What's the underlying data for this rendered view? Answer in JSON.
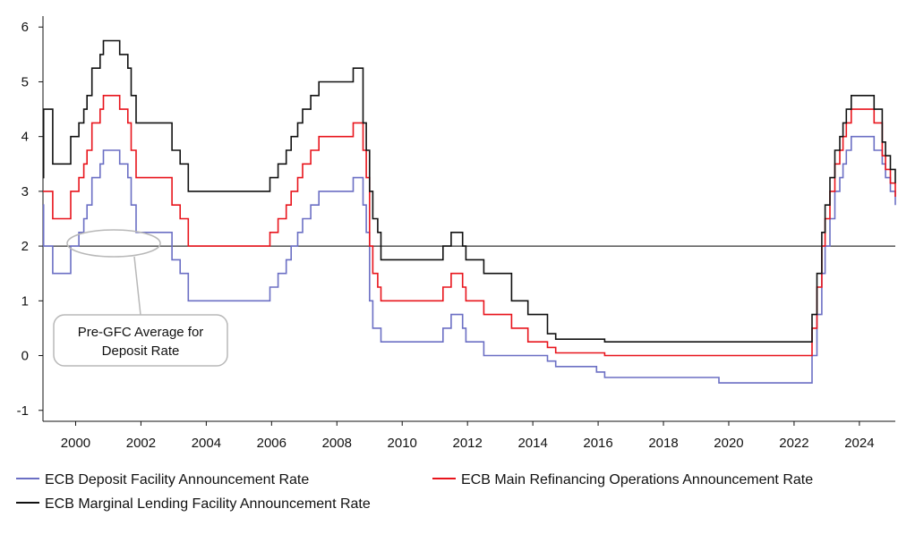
{
  "chart_data": {
    "type": "line",
    "title": "",
    "xlabel": "",
    "ylabel": "",
    "xlim": [
      1999.0,
      2025.1
    ],
    "ylim": [
      -1.2,
      6.2
    ],
    "x_ticks": [
      2000,
      2002,
      2004,
      2006,
      2008,
      2010,
      2012,
      2014,
      2016,
      2018,
      2020,
      2022,
      2024
    ],
    "x_tick_labels": [
      "2000",
      "2002",
      "2004",
      "2006",
      "2008",
      "2010",
      "2012",
      "2014",
      "2016",
      "2018",
      "2020",
      "2022",
      "2024"
    ],
    "y_ticks": [
      -1,
      0,
      1,
      2,
      3,
      4,
      5,
      6
    ],
    "y_tick_labels": [
      "-1",
      "0",
      "1",
      "2",
      "3",
      "4",
      "5",
      "6"
    ],
    "grid": false,
    "legend_position": "bottom",
    "reference_line": {
      "y": 2.0,
      "color": "#000000"
    },
    "annotation": {
      "lines": [
        "Pre-GFC Average for",
        "Deposit Rate"
      ],
      "target": {
        "x": 2001.0,
        "y": 2.0
      }
    },
    "series": [
      {
        "name": "ECB Deposit Facility Announcement Rate",
        "color": "#6b6fc4",
        "steps": [
          [
            1999.0,
            2.75
          ],
          [
            1999.02,
            2.0
          ],
          [
            1999.3,
            1.5
          ],
          [
            1999.85,
            2.0
          ],
          [
            2000.1,
            2.25
          ],
          [
            2000.25,
            2.5
          ],
          [
            2000.35,
            2.75
          ],
          [
            2000.5,
            3.25
          ],
          [
            2000.75,
            3.5
          ],
          [
            2000.85,
            3.75
          ],
          [
            2001.35,
            3.5
          ],
          [
            2001.6,
            3.25
          ],
          [
            2001.7,
            2.75
          ],
          [
            2001.85,
            2.25
          ],
          [
            2002.95,
            1.75
          ],
          [
            2003.2,
            1.5
          ],
          [
            2003.45,
            1.0
          ],
          [
            2005.95,
            1.25
          ],
          [
            2006.2,
            1.5
          ],
          [
            2006.45,
            1.75
          ],
          [
            2006.6,
            2.0
          ],
          [
            2006.8,
            2.25
          ],
          [
            2006.95,
            2.5
          ],
          [
            2007.2,
            2.75
          ],
          [
            2007.45,
            3.0
          ],
          [
            2008.5,
            3.25
          ],
          [
            2008.8,
            2.75
          ],
          [
            2008.9,
            2.25
          ],
          [
            2009.0,
            1.0
          ],
          [
            2009.1,
            0.5
          ],
          [
            2009.35,
            0.25
          ],
          [
            2011.25,
            0.5
          ],
          [
            2011.5,
            0.75
          ],
          [
            2011.85,
            0.5
          ],
          [
            2011.95,
            0.25
          ],
          [
            2012.5,
            0.0
          ],
          [
            2014.45,
            -0.1
          ],
          [
            2014.7,
            -0.2
          ],
          [
            2015.95,
            -0.3
          ],
          [
            2016.2,
            -0.4
          ],
          [
            2019.7,
            -0.5
          ],
          [
            2022.55,
            0.0
          ],
          [
            2022.7,
            0.75
          ],
          [
            2022.85,
            1.5
          ],
          [
            2022.95,
            2.0
          ],
          [
            2023.1,
            2.5
          ],
          [
            2023.25,
            3.0
          ],
          [
            2023.4,
            3.25
          ],
          [
            2023.5,
            3.5
          ],
          [
            2023.6,
            3.75
          ],
          [
            2023.75,
            4.0
          ],
          [
            2024.45,
            3.75
          ],
          [
            2024.7,
            3.5
          ],
          [
            2024.8,
            3.25
          ],
          [
            2024.95,
            3.0
          ],
          [
            2025.1,
            2.75
          ]
        ]
      },
      {
        "name": "ECB Main Refinancing Operations Announcement Rate",
        "color": "#e8141c",
        "steps": [
          [
            1999.0,
            3.0
          ],
          [
            1999.3,
            2.5
          ],
          [
            1999.85,
            3.0
          ],
          [
            2000.1,
            3.25
          ],
          [
            2000.25,
            3.5
          ],
          [
            2000.35,
            3.75
          ],
          [
            2000.5,
            4.25
          ],
          [
            2000.75,
            4.5
          ],
          [
            2000.85,
            4.75
          ],
          [
            2001.35,
            4.5
          ],
          [
            2001.6,
            4.25
          ],
          [
            2001.7,
            3.75
          ],
          [
            2001.85,
            3.25
          ],
          [
            2002.95,
            2.75
          ],
          [
            2003.2,
            2.5
          ],
          [
            2003.45,
            2.0
          ],
          [
            2005.95,
            2.25
          ],
          [
            2006.2,
            2.5
          ],
          [
            2006.45,
            2.75
          ],
          [
            2006.6,
            3.0
          ],
          [
            2006.8,
            3.25
          ],
          [
            2006.95,
            3.5
          ],
          [
            2007.2,
            3.75
          ],
          [
            2007.45,
            4.0
          ],
          [
            2008.5,
            4.25
          ],
          [
            2008.8,
            3.75
          ],
          [
            2008.9,
            3.25
          ],
          [
            2009.0,
            2.0
          ],
          [
            2009.1,
            1.5
          ],
          [
            2009.25,
            1.25
          ],
          [
            2009.35,
            1.0
          ],
          [
            2011.25,
            1.25
          ],
          [
            2011.5,
            1.5
          ],
          [
            2011.85,
            1.25
          ],
          [
            2011.95,
            1.0
          ],
          [
            2012.5,
            0.75
          ],
          [
            2013.35,
            0.5
          ],
          [
            2013.85,
            0.25
          ],
          [
            2014.45,
            0.15
          ],
          [
            2014.7,
            0.05
          ],
          [
            2016.2,
            0.0
          ],
          [
            2022.55,
            0.5
          ],
          [
            2022.7,
            1.25
          ],
          [
            2022.85,
            2.0
          ],
          [
            2022.95,
            2.5
          ],
          [
            2023.1,
            3.0
          ],
          [
            2023.25,
            3.5
          ],
          [
            2023.4,
            3.75
          ],
          [
            2023.5,
            4.0
          ],
          [
            2023.6,
            4.25
          ],
          [
            2023.75,
            4.5
          ],
          [
            2024.45,
            4.25
          ],
          [
            2024.7,
            3.65
          ],
          [
            2024.8,
            3.4
          ],
          [
            2024.95,
            3.15
          ],
          [
            2025.1,
            2.9
          ]
        ]
      },
      {
        "name": "ECB Marginal Lending Facility Announcement Rate",
        "color": "#111111",
        "steps": [
          [
            1999.0,
            3.25
          ],
          [
            1999.02,
            4.5
          ],
          [
            1999.3,
            3.5
          ],
          [
            1999.85,
            4.0
          ],
          [
            2000.1,
            4.25
          ],
          [
            2000.25,
            4.5
          ],
          [
            2000.35,
            4.75
          ],
          [
            2000.5,
            5.25
          ],
          [
            2000.75,
            5.5
          ],
          [
            2000.85,
            5.75
          ],
          [
            2001.35,
            5.5
          ],
          [
            2001.6,
            5.25
          ],
          [
            2001.7,
            4.75
          ],
          [
            2001.85,
            4.25
          ],
          [
            2002.95,
            3.75
          ],
          [
            2003.2,
            3.5
          ],
          [
            2003.45,
            3.0
          ],
          [
            2005.95,
            3.25
          ],
          [
            2006.2,
            3.5
          ],
          [
            2006.45,
            3.75
          ],
          [
            2006.6,
            4.0
          ],
          [
            2006.8,
            4.25
          ],
          [
            2006.95,
            4.5
          ],
          [
            2007.2,
            4.75
          ],
          [
            2007.45,
            5.0
          ],
          [
            2008.5,
            5.25
          ],
          [
            2008.8,
            4.25
          ],
          [
            2008.9,
            3.75
          ],
          [
            2009.0,
            3.0
          ],
          [
            2009.1,
            2.5
          ],
          [
            2009.25,
            2.25
          ],
          [
            2009.35,
            1.75
          ],
          [
            2011.25,
            2.0
          ],
          [
            2011.5,
            2.25
          ],
          [
            2011.85,
            2.0
          ],
          [
            2011.95,
            1.75
          ],
          [
            2012.5,
            1.5
          ],
          [
            2013.35,
            1.0
          ],
          [
            2013.85,
            0.75
          ],
          [
            2014.45,
            0.4
          ],
          [
            2014.7,
            0.3
          ],
          [
            2016.2,
            0.25
          ],
          [
            2022.55,
            0.75
          ],
          [
            2022.7,
            1.5
          ],
          [
            2022.85,
            2.25
          ],
          [
            2022.95,
            2.75
          ],
          [
            2023.1,
            3.25
          ],
          [
            2023.25,
            3.75
          ],
          [
            2023.4,
            4.0
          ],
          [
            2023.5,
            4.25
          ],
          [
            2023.6,
            4.5
          ],
          [
            2023.75,
            4.75
          ],
          [
            2024.45,
            4.5
          ],
          [
            2024.7,
            3.9
          ],
          [
            2024.8,
            3.65
          ],
          [
            2024.95,
            3.4
          ],
          [
            2025.1,
            3.15
          ]
        ]
      }
    ]
  }
}
